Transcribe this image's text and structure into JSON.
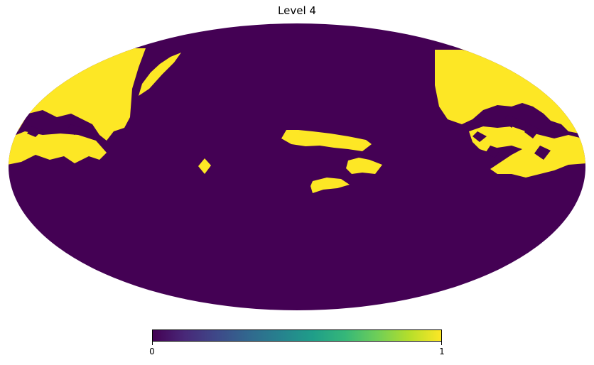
{
  "title": "Level 4",
  "colors": {
    "low": "#440154",
    "high": "#fde725"
  },
  "colorbar": {
    "min_label": "0",
    "max_label": "1"
  }
}
